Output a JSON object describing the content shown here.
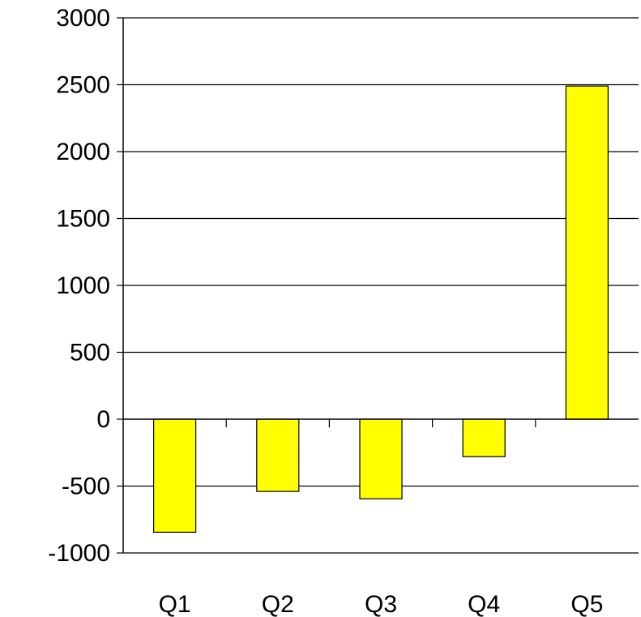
{
  "chart_data": {
    "type": "bar",
    "categories": [
      "Q1",
      "Q2",
      "Q3",
      "Q4",
      "Q5"
    ],
    "values": [
      -845,
      -540,
      -595,
      -280,
      2490
    ],
    "title": "",
    "xlabel": "",
    "ylabel": "",
    "ylim": [
      -1000,
      3000
    ],
    "yticks": [
      "-1000",
      "-500",
      "0",
      "500",
      "1000",
      "1500",
      "2000",
      "2500",
      "3000"
    ],
    "grid": true,
    "legend": "none",
    "bar_color": "#ffff00"
  }
}
